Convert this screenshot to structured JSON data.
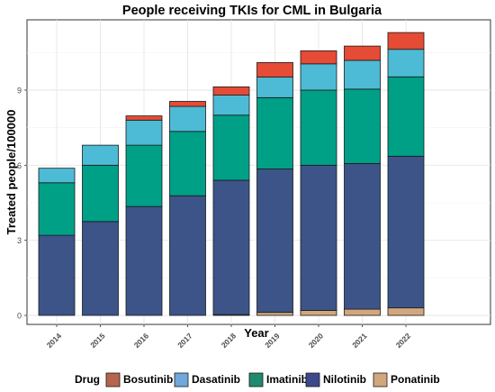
{
  "chart_data": {
    "type": "bar",
    "stacked": true,
    "title": "People receiving TKIs for CML in Bulgaria",
    "xlabel": "Year",
    "ylabel": "Treated people/100000",
    "categories": [
      "2014",
      "2015",
      "2016",
      "2017",
      "2018",
      "2019",
      "2020",
      "2021",
      "2022"
    ],
    "ylim": [
      0,
      11.3
    ],
    "yticks": [
      0,
      3,
      6,
      9
    ],
    "grid": true,
    "legend_position": "bottom",
    "legend_title": "Drug",
    "series": [
      {
        "name": "Ponatinib",
        "color": "#D2A77D",
        "values": [
          0.0,
          0.0,
          0.0,
          0.0,
          0.03,
          0.12,
          0.2,
          0.25,
          0.3
        ]
      },
      {
        "name": "Nilotinib",
        "color": "#3C5488",
        "values": [
          3.2,
          3.75,
          4.35,
          4.78,
          5.37,
          5.73,
          5.8,
          5.82,
          6.06
        ]
      },
      {
        "name": "Imatinib",
        "color": "#00A087",
        "values": [
          2.1,
          2.25,
          2.45,
          2.57,
          2.6,
          2.85,
          3.0,
          2.97,
          3.17
        ]
      },
      {
        "name": "Dasatinib",
        "color": "#4DBBD5",
        "values": [
          0.58,
          0.8,
          1.0,
          1.0,
          0.8,
          0.82,
          1.05,
          1.15,
          1.1
        ]
      },
      {
        "name": "Bosutinib",
        "color": "#E64B35",
        "values": [
          0.0,
          0.0,
          0.17,
          0.2,
          0.33,
          0.58,
          0.52,
          0.57,
          0.67
        ]
      }
    ],
    "legend_order": [
      "Bosutinib",
      "Dasatinib",
      "Imatinib",
      "Nilotinib",
      "Ponatinib"
    ],
    "legend_colors": {
      "Bosutinib": "#B5654D",
      "Dasatinib": "#6FA8DC",
      "Imatinib": "#1F8A70",
      "Nilotinib": "#3C4A8C",
      "Ponatinib": "#D2A77D"
    }
  }
}
